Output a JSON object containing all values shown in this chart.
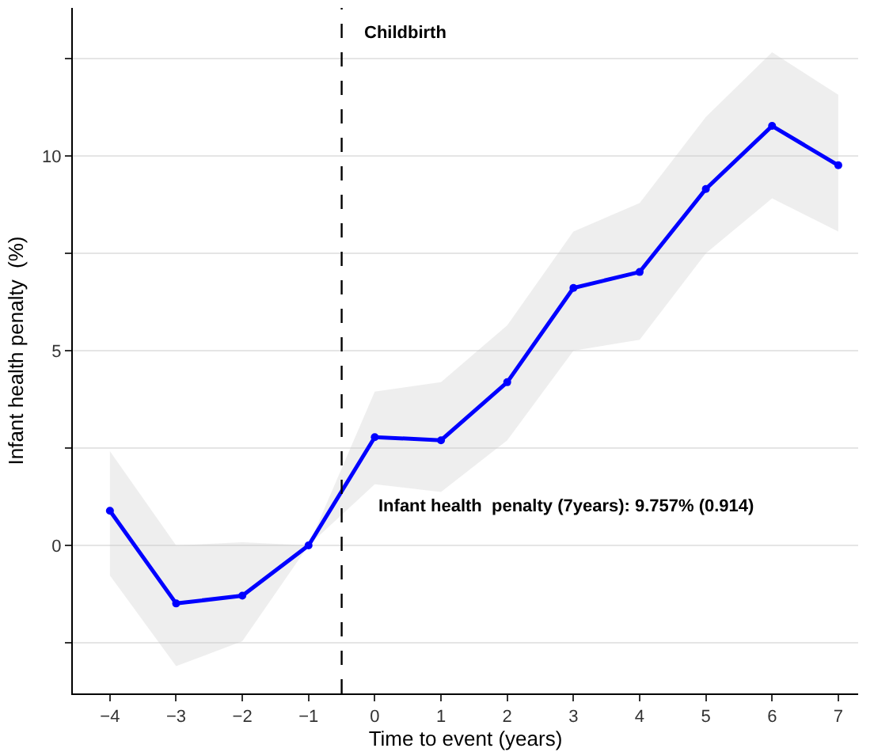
{
  "chart_data": {
    "type": "line",
    "xlabel": "Time to event (years)",
    "ylabel": "Infant health penalty  (%)",
    "x": [
      -4,
      -3,
      -2,
      -1,
      0,
      1,
      2,
      3,
      4,
      5,
      6,
      7
    ],
    "series": [
      {
        "color": "#0000ff",
        "values": [
          0.89,
          -1.49,
          -1.29,
          0,
          2.78,
          2.7,
          4.19,
          6.61,
          7.02,
          9.15,
          10.77,
          9.76
        ],
        "lower": [
          -0.77,
          -3.1,
          -2.46,
          0,
          1.57,
          1.37,
          2.7,
          5.0,
          5.28,
          7.5,
          8.91,
          8.06
        ],
        "upper": [
          2.42,
          0,
          0.08,
          0,
          3.95,
          4.19,
          5.65,
          8.06,
          8.79,
          11.0,
          12.66,
          11.57
        ]
      }
    ],
    "xlim": [
      -4.56,
      7.3
    ],
    "xticks": [
      -4,
      -3,
      -2,
      -1,
      0,
      1,
      2,
      3,
      4,
      5,
      6,
      7
    ],
    "ylim": [
      -3.8,
      13.8
    ],
    "yticks": [
      {
        "value": -2.5,
        "label": null
      },
      0,
      {
        "value": 2.5,
        "label": null
      },
      5,
      {
        "value": 7.5,
        "label": null
      },
      10,
      {
        "value": 12.5,
        "label": null
      }
    ],
    "grid": "y",
    "marker": "circle",
    "line_style": "solid",
    "ref_lines": [
      {
        "axis": "x",
        "value": -0.5,
        "label": "Childbirth",
        "line_style": "dashed",
        "color": "#000000"
      }
    ],
    "annotations": [
      "Infant health  penalty (7years): 9.757% (0.914)"
    ]
  }
}
